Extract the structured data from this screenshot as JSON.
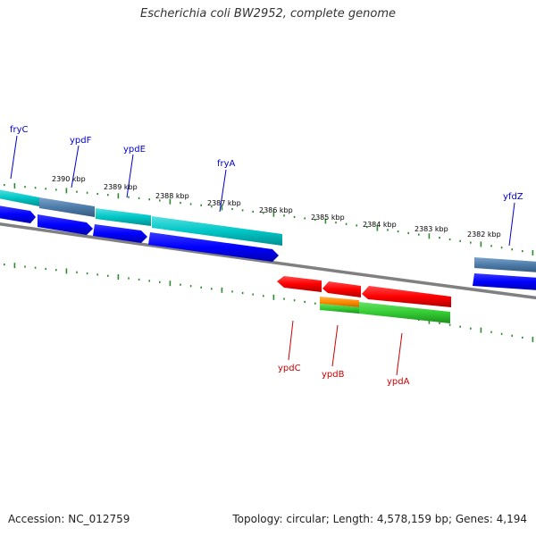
{
  "title": "Escherichia coli BW2952, complete genome",
  "footer": {
    "accession": "Accession: NC_012759",
    "summary": "Topology: circular; Length: 4,578,159 bp; Genes: 4,194"
  },
  "colors": {
    "backbone": "#808080",
    "tick": "#2d8a2d",
    "forward_cds": "#0000ff",
    "reverse_cds": "#ff0000",
    "cyan_feature": "#00c6c6",
    "steel_feature": "#4d7ba8",
    "orange_feature": "#ff8c00",
    "green_feature": "#33cc33",
    "forward_label": "#0000cc",
    "reverse_label": "#cc0000"
  },
  "scale_labels": [
    "2390 kbp",
    "2389 kbp",
    "2388 kbp",
    "2387 kbp",
    "2386 kbp",
    "2385 kbp",
    "2384 kbp",
    "2383 kbp",
    "2382 kbp"
  ],
  "forward_genes": [
    "fryC",
    "ypdF",
    "ypdE",
    "fryA",
    "yfdZ"
  ],
  "reverse_genes": [
    "ypdC",
    "ypdB",
    "ypdA"
  ]
}
